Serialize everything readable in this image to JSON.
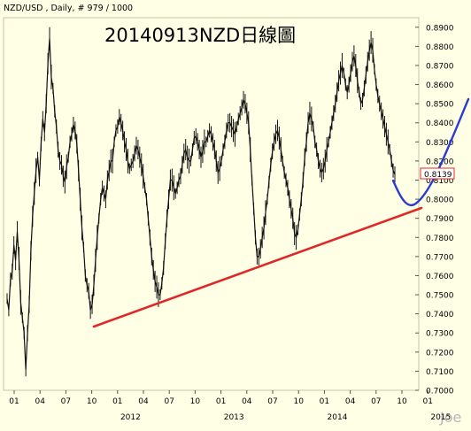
{
  "chart_data": {
    "type": "line",
    "header": "NZD/USD , Daily, # 979 / 1000",
    "title": "20140913NZD日線圖",
    "watermark": "Joe",
    "last_price_label": "0.8139",
    "y_ticks": [
      "0.8900",
      "0.8800",
      "0.8700",
      "0.8600",
      "0.8500",
      "0.8400",
      "0.8300",
      "0.8200",
      "0.8100",
      "0.8000",
      "0.7900",
      "0.7800",
      "0.7700",
      "0.7600",
      "0.7500",
      "0.7400",
      "0.7300",
      "0.7200",
      "0.7100",
      "0.7000"
    ],
    "y_tick_values": [
      0.89,
      0.88,
      0.87,
      0.86,
      0.85,
      0.84,
      0.83,
      0.82,
      0.81,
      0.8,
      0.79,
      0.78,
      0.77,
      0.76,
      0.75,
      0.74,
      0.73,
      0.72,
      0.71,
      0.7
    ],
    "ylim": [
      0.7,
      0.895
    ],
    "x_month_ticks": [
      "01",
      "04",
      "07",
      "10",
      "01",
      "04",
      "07",
      "10",
      "01",
      "04",
      "07",
      "10",
      "01",
      "04",
      "07",
      "10",
      "01"
    ],
    "x_year_labels": [
      "2012",
      "2013",
      "2014",
      "2015"
    ],
    "x_year_tick_index": [
      5,
      9,
      13,
      17
    ],
    "series": [
      {
        "values": [
          0.748,
          0.742,
          0.758,
          0.762,
          0.776,
          0.768,
          0.783,
          0.769,
          0.746,
          0.738,
          0.73,
          0.711,
          0.73,
          0.745,
          0.773,
          0.791,
          0.803,
          0.815,
          0.822,
          0.81,
          0.829,
          0.842,
          0.835,
          0.85,
          0.871,
          0.884,
          0.864,
          0.858,
          0.846,
          0.838,
          0.826,
          0.82,
          0.818,
          0.812,
          0.809,
          0.817,
          0.822,
          0.83,
          0.834,
          0.839,
          0.836,
          0.829,
          0.815,
          0.8,
          0.785,
          0.775,
          0.76,
          0.755,
          0.752,
          0.742,
          0.745,
          0.755,
          0.768,
          0.78,
          0.79,
          0.8,
          0.806,
          0.803,
          0.8,
          0.81,
          0.815,
          0.82,
          0.82,
          0.83,
          0.836,
          0.838,
          0.843,
          0.84,
          0.836,
          0.83,
          0.826,
          0.82,
          0.816,
          0.818,
          0.82,
          0.824,
          0.828,
          0.826,
          0.822,
          0.818,
          0.812,
          0.806,
          0.8,
          0.79,
          0.78,
          0.77,
          0.763,
          0.757,
          0.754,
          0.75,
          0.75,
          0.756,
          0.764,
          0.778,
          0.79,
          0.8,
          0.81,
          0.81,
          0.806,
          0.803,
          0.806,
          0.81,
          0.812,
          0.818,
          0.824,
          0.826,
          0.822,
          0.82,
          0.82,
          0.826,
          0.832,
          0.833,
          0.83,
          0.826,
          0.822,
          0.825,
          0.83,
          0.83,
          0.833,
          0.836,
          0.834,
          0.83,
          0.826,
          0.82,
          0.814,
          0.816,
          0.82,
          0.826,
          0.83,
          0.836,
          0.84,
          0.84,
          0.838,
          0.836,
          0.834,
          0.838,
          0.842,
          0.845,
          0.848,
          0.852,
          0.85,
          0.845,
          0.84,
          0.826,
          0.81,
          0.795,
          0.78,
          0.77,
          0.77,
          0.774,
          0.78,
          0.785,
          0.793,
          0.8,
          0.809,
          0.818,
          0.825,
          0.83,
          0.834,
          0.836,
          0.832,
          0.826,
          0.82,
          0.814,
          0.81,
          0.806,
          0.8,
          0.795,
          0.79,
          0.782,
          0.78,
          0.784,
          0.792,
          0.8,
          0.81,
          0.822,
          0.83,
          0.84,
          0.845,
          0.842,
          0.838,
          0.83,
          0.826,
          0.82,
          0.816,
          0.814,
          0.816,
          0.82,
          0.826,
          0.83,
          0.835,
          0.84,
          0.845,
          0.85,
          0.856,
          0.862,
          0.866,
          0.87,
          0.866,
          0.86,
          0.856,
          0.86,
          0.866,
          0.872,
          0.875,
          0.87,
          0.862,
          0.856,
          0.85,
          0.852,
          0.858,
          0.865,
          0.872,
          0.878,
          0.882,
          0.878,
          0.868,
          0.86,
          0.854,
          0.85,
          0.846,
          0.842,
          0.838,
          0.834,
          0.83,
          0.826,
          0.82,
          0.815,
          0.813
        ]
      }
    ],
    "annotations": [
      {
        "type": "support_trendline",
        "color": "#e02828",
        "from": {
          "date": "2011-11",
          "price": 0.735
        },
        "to": {
          "date": "2014-12",
          "price": 0.794
        }
      },
      {
        "type": "projected_curve",
        "color": "#2c3ad0"
      }
    ]
  }
}
